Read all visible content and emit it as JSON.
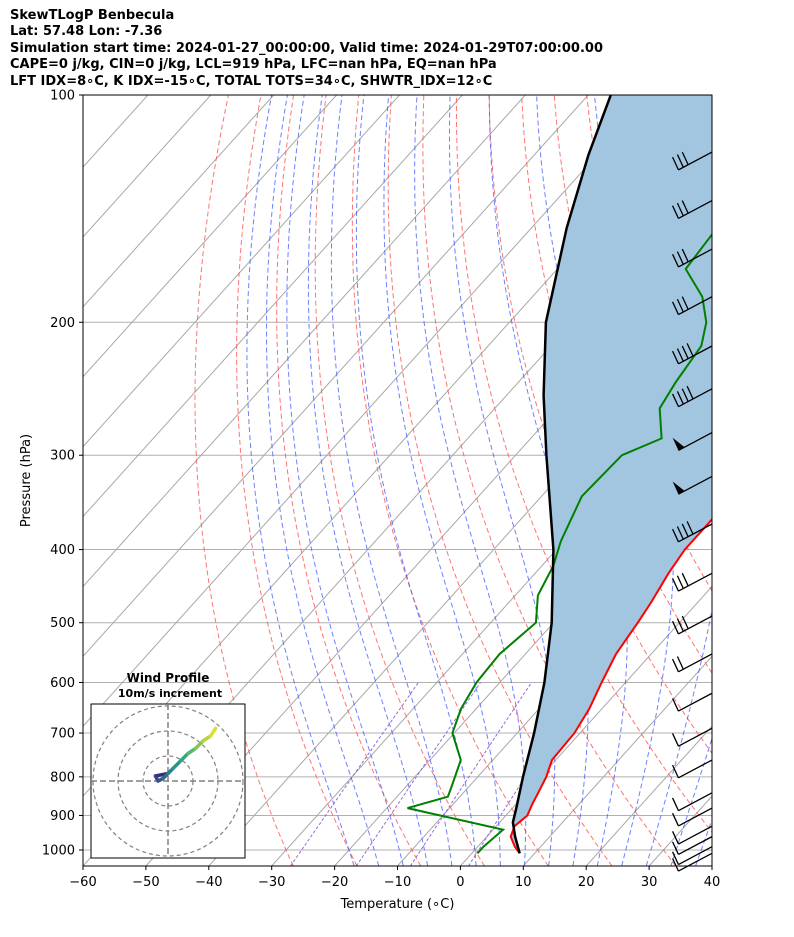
{
  "header": {
    "line1": "SkewTLogP Benbecula",
    "line2": "Lat: 57.48   Lon: -7.36",
    "line3": "Simulation start time: 2024-01-27_00:00:00, Valid time: 2024-01-29T07:00:00.00",
    "line4": "CAPE=0 j/kg, CIN=0 j/kg, LCL=919 hPa, LFC=nan hPa, EQ=nan hPa",
    "line5": "LFT IDX=8∘C, K IDX=-15∘C, TOTAL TOTS=34∘C, SHWTR_IDX=12∘C"
  },
  "chart_data": {
    "type": "line",
    "subtype": "skew-t log-p",
    "xlabel": "Temperature (∘C)",
    "ylabel": "Pressure (hPa)",
    "xlim": [
      -60,
      40
    ],
    "ylim": [
      1050,
      100
    ],
    "y_scale": "log",
    "x_ticks": [
      "−60",
      "−50",
      "−40",
      "−30",
      "−20",
      "−10",
      "0",
      "10",
      "20",
      "30",
      "40"
    ],
    "y_ticks": [
      "100",
      "200",
      "300",
      "400",
      "500",
      "600",
      "700",
      "800",
      "900",
      "1000"
    ],
    "grid": true,
    "colors": {
      "temperature": "#ff0000",
      "dewpoint": "#008000",
      "parcel": "#000000",
      "cape_fill": "#a3c6e0",
      "dry_adiabat": "#ff5a5a",
      "moist_adiabat": "#3c55ff",
      "mixing_ratio": "#8a5ad6",
      "isotherm": "#a8a8a8"
    },
    "series": [
      {
        "key": "temperature",
        "pressure": [
          1010,
          990,
          960,
          930,
          900,
          870,
          840,
          800,
          760,
          700,
          650,
          600,
          550,
          500,
          470,
          430,
          400,
          360,
          320,
          290,
          260,
          240,
          225,
          210,
          190,
          170,
          150,
          130,
          115,
          100
        ],
        "value": [
          7.6,
          5.9,
          3.8,
          2.9,
          3.4,
          2.6,
          1.9,
          0.9,
          -0.6,
          -0.9,
          -2.0,
          -3.8,
          -5.6,
          -6.6,
          -7.4,
          -8.8,
          -9.6,
          -9.6,
          -10.3,
          -11.9,
          -13.8,
          -14.6,
          -14.3,
          -12.8,
          -8.9,
          -4.8,
          -0.6,
          3.2,
          6.6,
          10.3
        ]
      },
      {
        "key": "dewpoint",
        "pressure": [
          1010,
          990,
          940,
          880,
          850,
          820,
          760,
          700,
          650,
          600,
          550,
          500,
          460,
          420,
          390,
          340,
          300,
          285,
          260,
          240,
          215,
          200,
          185,
          170,
          150,
          125,
          100
        ],
        "value": [
          0.9,
          0.9,
          1.6,
          -16.7,
          -11.9,
          -12.9,
          -15.1,
          -20.3,
          -22.4,
          -23.7,
          -24.1,
          -22.8,
          -26.4,
          -28.2,
          -30.5,
          -33.6,
          -33.1,
          -29.2,
          -33.8,
          -35.0,
          -36.1,
          -38.7,
          -43.0,
          -49.6,
          -50.5,
          -53.5,
          -57.7
        ]
      },
      {
        "key": "parcel",
        "pressure": [
          1010,
          960,
          919,
          880,
          800,
          700,
          600,
          500,
          400,
          300,
          250,
          200,
          150,
          120,
          100
        ],
        "value": [
          7.6,
          4.5,
          2.1,
          0.6,
          -2.8,
          -7.3,
          -12.9,
          -20.3,
          -30.5,
          -45.1,
          -54.1,
          -64.2,
          -74.4,
          -81.4,
          -86.4
        ]
      }
    ],
    "wind_barbs": [
      {
        "pressure": 1010,
        "speed_kt": 10
      },
      {
        "pressure": 990,
        "speed_kt": 10
      },
      {
        "pressure": 960,
        "speed_kt": 10
      },
      {
        "pressure": 930,
        "speed_kt": 10
      },
      {
        "pressure": 880,
        "speed_kt": 10
      },
      {
        "pressure": 840,
        "speed_kt": 10
      },
      {
        "pressure": 760,
        "speed_kt": 10
      },
      {
        "pressure": 690,
        "speed_kt": 10
      },
      {
        "pressure": 620,
        "speed_kt": 10
      },
      {
        "pressure": 550,
        "speed_kt": 20
      },
      {
        "pressure": 490,
        "speed_kt": 30
      },
      {
        "pressure": 430,
        "speed_kt": 30
      },
      {
        "pressure": 370,
        "speed_kt": 40
      },
      {
        "pressure": 320,
        "speed_kt": 50
      },
      {
        "pressure": 280,
        "speed_kt": 50
      },
      {
        "pressure": 245,
        "speed_kt": 40
      },
      {
        "pressure": 215,
        "speed_kt": 40
      },
      {
        "pressure": 185,
        "speed_kt": 30
      },
      {
        "pressure": 160,
        "speed_kt": 30
      },
      {
        "pressure": 138,
        "speed_kt": 30
      },
      {
        "pressure": 119,
        "speed_kt": 30
      }
    ],
    "inset": {
      "title": "Wind Profile",
      "subtitle": "10m/s increment",
      "hodograph_u": [
        0,
        -5,
        -4,
        -2,
        0,
        2,
        5,
        8,
        11,
        14,
        17,
        19
      ],
      "hodograph_v": [
        3,
        2,
        0,
        1,
        3,
        5,
        8,
        11,
        13,
        16,
        18,
        21
      ]
    }
  }
}
